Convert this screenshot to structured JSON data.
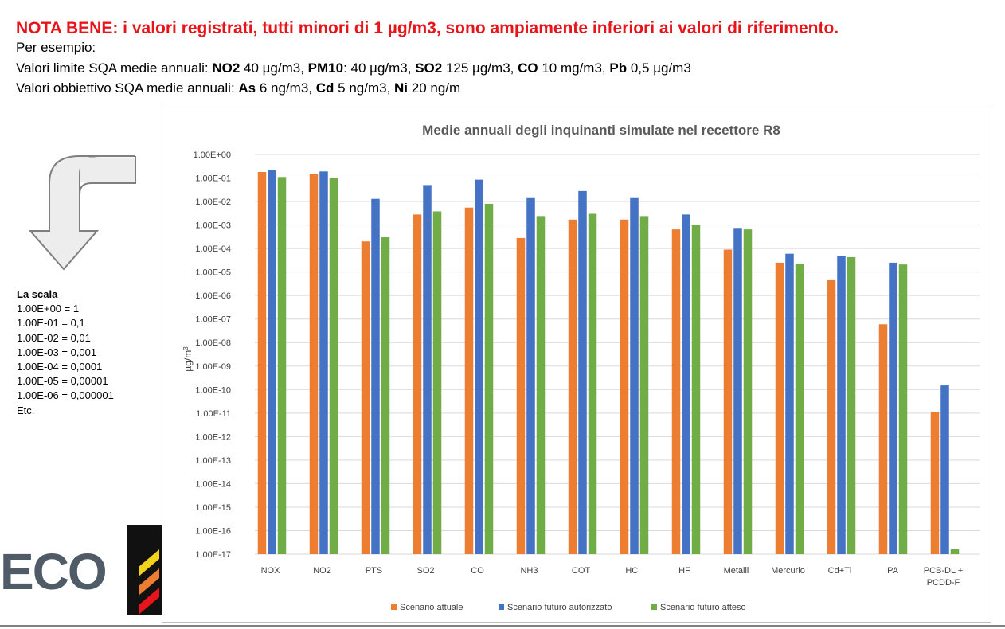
{
  "header": {
    "nota": "NOTA BENE: i valori registrati, tutti minori di 1 µg/m3, sono ampiamente inferiori ai valori di riferimento.",
    "per_esempio": "Per esempio:",
    "limit_prefix": "Valori limite SQA medie annuali: ",
    "limit_items": [
      {
        "name": "NO2",
        "value": " 40 µg/m3, "
      },
      {
        "name": "PM10",
        "value": ": 40 µg/m3, "
      },
      {
        "name": "SO2",
        "value": " 125 µg/m3, "
      },
      {
        "name": "CO",
        "value": " 10 mg/m3, "
      },
      {
        "name": "Pb",
        "value": " 0,5 µg/m3"
      }
    ],
    "target_prefix": "Valori obbiettivo SQA medie annuali: ",
    "target_items": [
      {
        "name": "As",
        "value": " 6 ng/m3, "
      },
      {
        "name": "Cd",
        "value": " 5 ng/m3, "
      },
      {
        "name": "Ni",
        "value": " 20 ng/m"
      }
    ]
  },
  "scale_note": {
    "title": "La scala",
    "lines": [
      "1.00E+00 = 1",
      "1.00E-01 = 0,1",
      "1.00E-02 = 0,01",
      "1.00E-03 = 0,001",
      "1.00E-04 = 0,0001",
      "1.00E-05 = 0,00001",
      "1.00E-06 = 0,000001",
      "Etc."
    ]
  },
  "logo": {
    "text": "ECO"
  },
  "colors": {
    "red": "#e8141b",
    "orange": "#ed7d31",
    "blue": "#4472c4",
    "green": "#70ad47",
    "arrow_fill": "#ededed",
    "arrow_stroke": "#7f7f7f",
    "grid": "#d9d9d9",
    "logo_text": "#4f5b66"
  },
  "chart_data": {
    "type": "bar",
    "title": "Medie annuali degli inquinanti simulate nel recettore R8",
    "ylabel": "µg/m",
    "ylabel_sup": "3",
    "y_scale": "log",
    "ylim": [
      1e-17,
      1
    ],
    "y_ticks": [
      "1.00E+00",
      "1.00E-01",
      "1.00E-02",
      "1.00E-03",
      "1.00E-04",
      "1.00E-05",
      "1.00E-06",
      "1.00E-07",
      "1.00E-08",
      "1.00E-09",
      "1.00E-10",
      "1.00E-11",
      "1.00E-12",
      "1.00E-13",
      "1.00E-14",
      "1.00E-15",
      "1.00E-16",
      "1.00E-17"
    ],
    "grid": true,
    "legend_position": "bottom",
    "categories": [
      "NOX",
      "NO2",
      "PTS",
      "SO2",
      "CO",
      "NH3",
      "COT",
      "HCl",
      "HF",
      "Metalli",
      "Mercurio",
      "Cd+Tl",
      "IPA",
      "PCB-DL +\nPCDD-F"
    ],
    "series": [
      {
        "name": "Scenario attuale",
        "color": "#ed7d31",
        "values": [
          0.18,
          0.15,
          0.0002,
          0.0028,
          0.0055,
          0.00028,
          0.0017,
          0.0017,
          0.00065,
          9e-05,
          2.5e-05,
          4.5e-06,
          6e-08,
          1.15e-11
        ]
      },
      {
        "name": "Scenario futuro autorizzato",
        "color": "#4472c4",
        "values": [
          0.21,
          0.19,
          0.013,
          0.05,
          0.085,
          0.014,
          0.028,
          0.014,
          0.0028,
          0.00075,
          6e-05,
          5e-05,
          2.5e-05,
          1.5e-10
        ]
      },
      {
        "name": "Scenario futuro atteso",
        "color": "#70ad47",
        "values": [
          0.11,
          0.1,
          0.0003,
          0.0038,
          0.008,
          0.0024,
          0.003,
          0.0024,
          0.001,
          0.00065,
          2.3e-05,
          4.3e-05,
          2.1e-05,
          1.6e-17
        ]
      }
    ]
  }
}
